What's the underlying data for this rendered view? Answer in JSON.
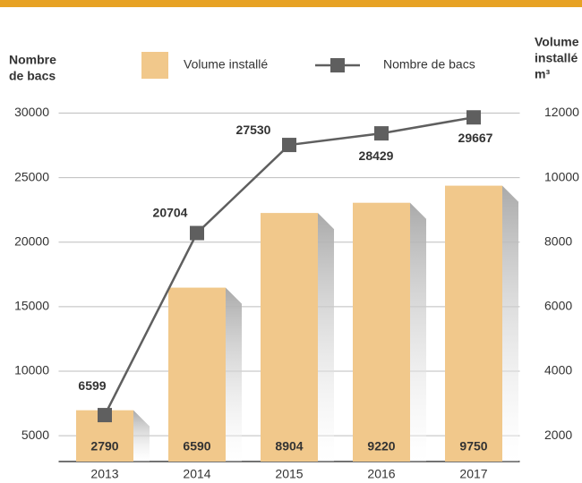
{
  "chart_data": {
    "type": "bar-line",
    "ylabel": [
      "Nombre",
      "de bacs"
    ],
    "y2label": [
      "Volume",
      "installé",
      "m³"
    ],
    "categories": [
      "2013",
      "2014",
      "2015",
      "2016",
      "2017"
    ],
    "series": [
      {
        "name": "Volume installé",
        "type": "bar",
        "axis": "y2",
        "color": "#f1c88b",
        "values": [
          2790,
          6590,
          8904,
          9220,
          9750
        ]
      },
      {
        "name": "Nombre de bacs",
        "type": "line",
        "axis": "y",
        "color": "#5f5f5f",
        "values": [
          6599,
          20704,
          27530,
          28429,
          29667
        ]
      }
    ],
    "ylim": [
      3000,
      31000
    ],
    "yticks": [
      5000,
      10000,
      15000,
      20000,
      25000,
      30000
    ],
    "y2lim": [
      1200,
      12400
    ],
    "y2ticks": [
      2000,
      4000,
      6000,
      8000,
      10000,
      12000
    ],
    "grid": true
  }
}
